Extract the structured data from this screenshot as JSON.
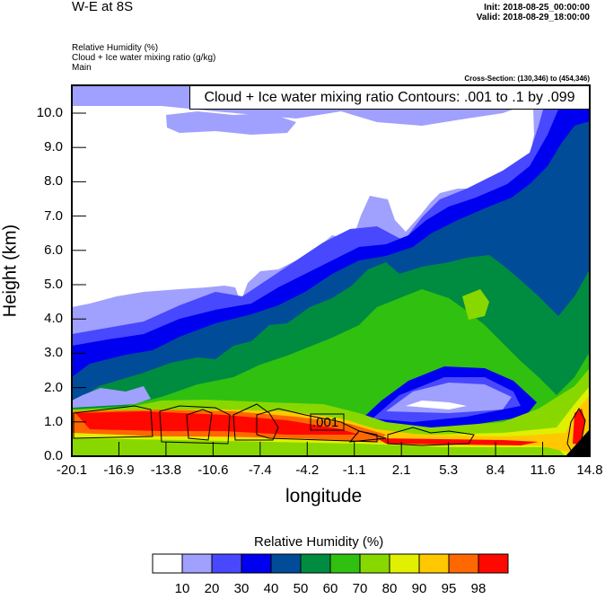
{
  "header": {
    "title": "W-E at 8S",
    "init": "Init: 2018-08-25_00:00:00",
    "valid": "Valid: 2018-08-29_18:00:00",
    "subtitles": [
      "Relative Humidity   (%)",
      "Cloud + Ice water mixing ratio   (g/kg)",
      "Main"
    ],
    "cross_section": "Cross-Section: (130,346) to (454,346)"
  },
  "chart_data": {
    "type": "heatmap",
    "title": "W-E at 8S",
    "xlabel": "longitude",
    "ylabel": "Height (km)",
    "x_ticks": [
      "-20.1",
      "-16.9",
      "-13.8",
      "-10.6",
      "-7.4",
      "-4.2",
      "-1.1",
      "2.1",
      "5.3",
      "8.4",
      "11.6",
      "14.8"
    ],
    "xlim": [
      -20.1,
      14.8
    ],
    "y_ticks": [
      "0.0",
      "1.0",
      "2.0",
      "3.0",
      "4.0",
      "5.0",
      "6.0",
      "7.0",
      "8.0",
      "9.0",
      "10.0"
    ],
    "ylim": [
      0,
      10.8
    ],
    "contour_legend": "Cloud + Ice water mixing ratio Contours: .001 to .1 by .099",
    "contour_label": ".001",
    "colorbar": {
      "title": "Relative Humidity  (%)",
      "levels": [
        "10",
        "20",
        "30",
        "40",
        "50",
        "60",
        "70",
        "80",
        "90",
        "95",
        "98"
      ],
      "colors": [
        "#ffffff",
        "#a0a0ff",
        "#4848ff",
        "#0000f0",
        "#004c98",
        "#008c40",
        "#30c010",
        "#88d800",
        "#e0f000",
        "#ffc800",
        "#ff6800",
        "#ff0800"
      ]
    }
  }
}
